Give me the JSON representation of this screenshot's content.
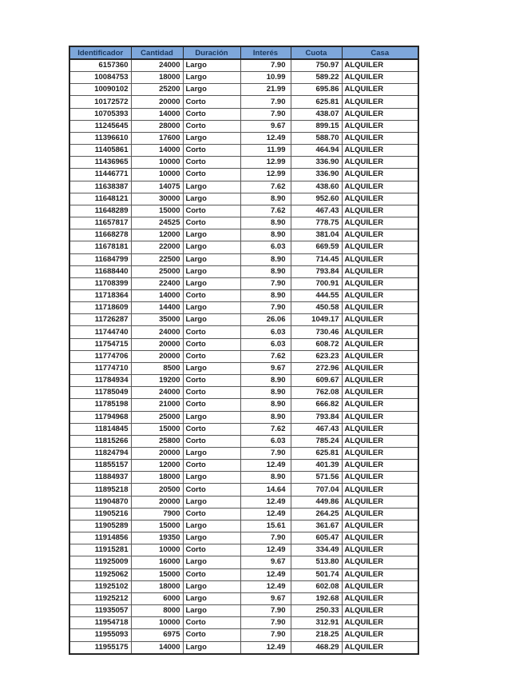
{
  "styles": {
    "header_background": "#7ea7db",
    "header_text_color": "#17365d",
    "inner_border_color": "#595959",
    "outer_border_color": "#262626"
  },
  "table": {
    "columns": [
      {
        "label": "Identificador",
        "align": "right"
      },
      {
        "label": "Cantidad",
        "align": "right"
      },
      {
        "label": "Duración",
        "align": "left"
      },
      {
        "label": "Interés",
        "align": "right"
      },
      {
        "label": "Cuota",
        "align": "right"
      },
      {
        "label": "Casa",
        "align": "left"
      }
    ],
    "rows": [
      [
        "6157360",
        "24000",
        "Largo",
        "7.90",
        "750.97",
        "ALQUILER"
      ],
      [
        "10084753",
        "18000",
        "Largo",
        "10.99",
        "589.22",
        "ALQUILER"
      ],
      [
        "10090102",
        "25200",
        "Largo",
        "21.99",
        "695.86",
        "ALQUILER"
      ],
      [
        "10172572",
        "20000",
        "Corto",
        "7.90",
        "625.81",
        "ALQUILER"
      ],
      [
        "10705393",
        "14000",
        "Corto",
        "7.90",
        "438.07",
        "ALQUILER"
      ],
      [
        "11245645",
        "28000",
        "Corto",
        "9.67",
        "899.15",
        "ALQUILER"
      ],
      [
        "11396610",
        "17600",
        "Largo",
        "12.49",
        "588.70",
        "ALQUILER"
      ],
      [
        "11405861",
        "14000",
        "Corto",
        "11.99",
        "464.94",
        "ALQUILER"
      ],
      [
        "11436965",
        "10000",
        "Corto",
        "12.99",
        "336.90",
        "ALQUILER"
      ],
      [
        "11446771",
        "10000",
        "Corto",
        "12.99",
        "336.90",
        "ALQUILER"
      ],
      [
        "11638387",
        "14075",
        "Largo",
        "7.62",
        "438.60",
        "ALQUILER"
      ],
      [
        "11648121",
        "30000",
        "Largo",
        "8.90",
        "952.60",
        "ALQUILER"
      ],
      [
        "11648289",
        "15000",
        "Corto",
        "7.62",
        "467.43",
        "ALQUILER"
      ],
      [
        "11657817",
        "24525",
        "Corto",
        "8.90",
        "778.75",
        "ALQUILER"
      ],
      [
        "11668278",
        "12000",
        "Largo",
        "8.90",
        "381.04",
        "ALQUILER"
      ],
      [
        "11678181",
        "22000",
        "Largo",
        "6.03",
        "669.59",
        "ALQUILER"
      ],
      [
        "11684799",
        "22500",
        "Largo",
        "8.90",
        "714.45",
        "ALQUILER"
      ],
      [
        "11688440",
        "25000",
        "Largo",
        "8.90",
        "793.84",
        "ALQUILER"
      ],
      [
        "11708399",
        "22400",
        "Largo",
        "7.90",
        "700.91",
        "ALQUILER"
      ],
      [
        "11718364",
        "14000",
        "Corto",
        "8.90",
        "444.55",
        "ALQUILER"
      ],
      [
        "11718609",
        "14400",
        "Largo",
        "7.90",
        "450.58",
        "ALQUILER"
      ],
      [
        "11726287",
        "35000",
        "Largo",
        "26.06",
        "1049.17",
        "ALQUILER"
      ],
      [
        "11744740",
        "24000",
        "Corto",
        "6.03",
        "730.46",
        "ALQUILER"
      ],
      [
        "11754715",
        "20000",
        "Corto",
        "6.03",
        "608.72",
        "ALQUILER"
      ],
      [
        "11774706",
        "20000",
        "Corto",
        "7.62",
        "623.23",
        "ALQUILER"
      ],
      [
        "11774710",
        "8500",
        "Largo",
        "9.67",
        "272.96",
        "ALQUILER"
      ],
      [
        "11784934",
        "19200",
        "Corto",
        "8.90",
        "609.67",
        "ALQUILER"
      ],
      [
        "11785049",
        "24000",
        "Corto",
        "8.90",
        "762.08",
        "ALQUILER"
      ],
      [
        "11785198",
        "21000",
        "Corto",
        "8.90",
        "666.82",
        "ALQUILER"
      ],
      [
        "11794968",
        "25000",
        "Largo",
        "8.90",
        "793.84",
        "ALQUILER"
      ],
      [
        "11814845",
        "15000",
        "Corto",
        "7.62",
        "467.43",
        "ALQUILER"
      ],
      [
        "11815266",
        "25800",
        "Corto",
        "6.03",
        "785.24",
        "ALQUILER"
      ],
      [
        "11824794",
        "20000",
        "Largo",
        "7.90",
        "625.81",
        "ALQUILER"
      ],
      [
        "11855157",
        "12000",
        "Corto",
        "12.49",
        "401.39",
        "ALQUILER"
      ],
      [
        "11884937",
        "18000",
        "Largo",
        "8.90",
        "571.56",
        "ALQUILER"
      ],
      [
        "11895218",
        "20500",
        "Corto",
        "14.64",
        "707.04",
        "ALQUILER"
      ],
      [
        "11904870",
        "20000",
        "Largo",
        "12.49",
        "449.86",
        "ALQUILER"
      ],
      [
        "11905216",
        "7900",
        "Corto",
        "12.49",
        "264.25",
        "ALQUILER"
      ],
      [
        "11905289",
        "15000",
        "Largo",
        "15.61",
        "361.67",
        "ALQUILER"
      ],
      [
        "11914856",
        "19350",
        "Largo",
        "7.90",
        "605.47",
        "ALQUILER"
      ],
      [
        "11915281",
        "10000",
        "Corto",
        "12.49",
        "334.49",
        "ALQUILER"
      ],
      [
        "11925009",
        "16000",
        "Largo",
        "9.67",
        "513.80",
        "ALQUILER"
      ],
      [
        "11925062",
        "15000",
        "Corto",
        "12.49",
        "501.74",
        "ALQUILER"
      ],
      [
        "11925102",
        "18000",
        "Largo",
        "12.49",
        "602.08",
        "ALQUILER"
      ],
      [
        "11925212",
        "6000",
        "Largo",
        "9.67",
        "192.68",
        "ALQUILER"
      ],
      [
        "11935057",
        "8000",
        "Largo",
        "7.90",
        "250.33",
        "ALQUILER"
      ],
      [
        "11954718",
        "10000",
        "Corto",
        "7.90",
        "312.91",
        "ALQUILER"
      ],
      [
        "11955093",
        "6975",
        "Corto",
        "7.90",
        "218.25",
        "ALQUILER"
      ],
      [
        "11955175",
        "14000",
        "Largo",
        "12.49",
        "468.29",
        "ALQUILER"
      ]
    ]
  }
}
